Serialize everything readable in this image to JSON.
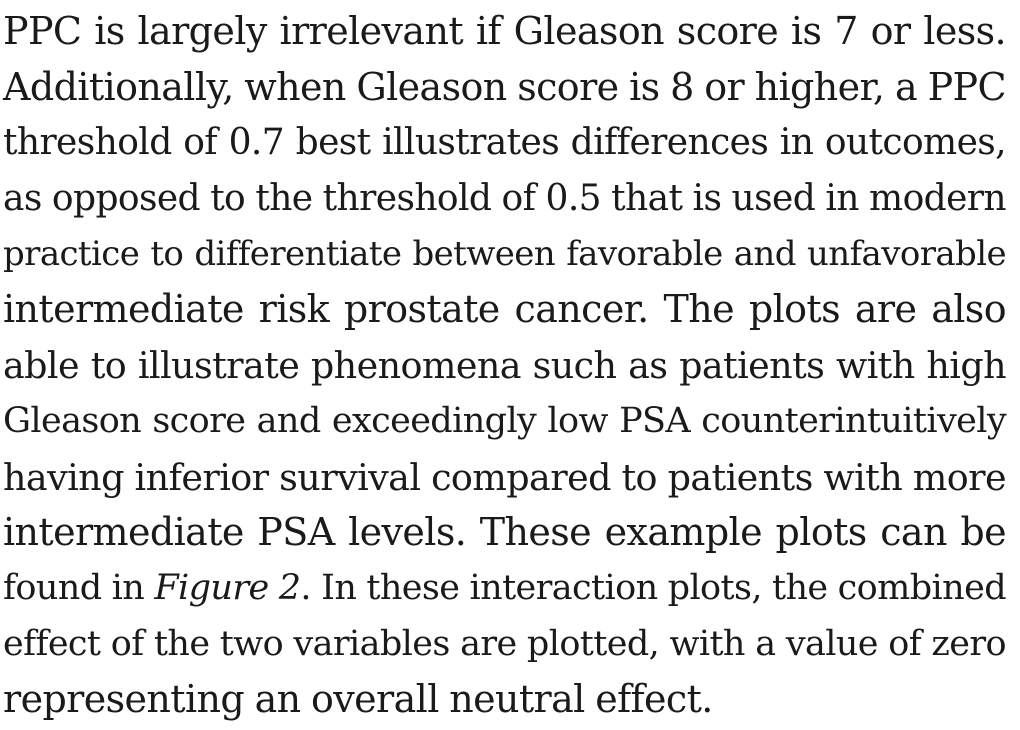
{
  "paragraph": {
    "lines": [
      "PPC is largely irrelevant if Gleason score is 7 or less.",
      "Additionally, when Gleason score is 8 or higher, a PPC",
      "threshold of 0.7 best illustrates differences in outcomes,",
      "as opposed to the threshold of 0.5 that is used in modern",
      "practice to differentiate between favorable and unfavorable",
      "intermediate risk prostate cancer. The plots are also",
      "able to illustrate phenomena such as patients with high",
      "Gleason score and exceedingly low PSA counterintuitively",
      "having inferior survival compared to patients with more",
      "intermediate PSA levels. These example plots can be",
      {
        "before": "found in ",
        "italic": "Figure 2",
        "after": ". In these interaction plots, the combined"
      },
      "effect of the two variables are plotted, with a value of zero",
      "representing an overall neutral effect."
    ]
  }
}
